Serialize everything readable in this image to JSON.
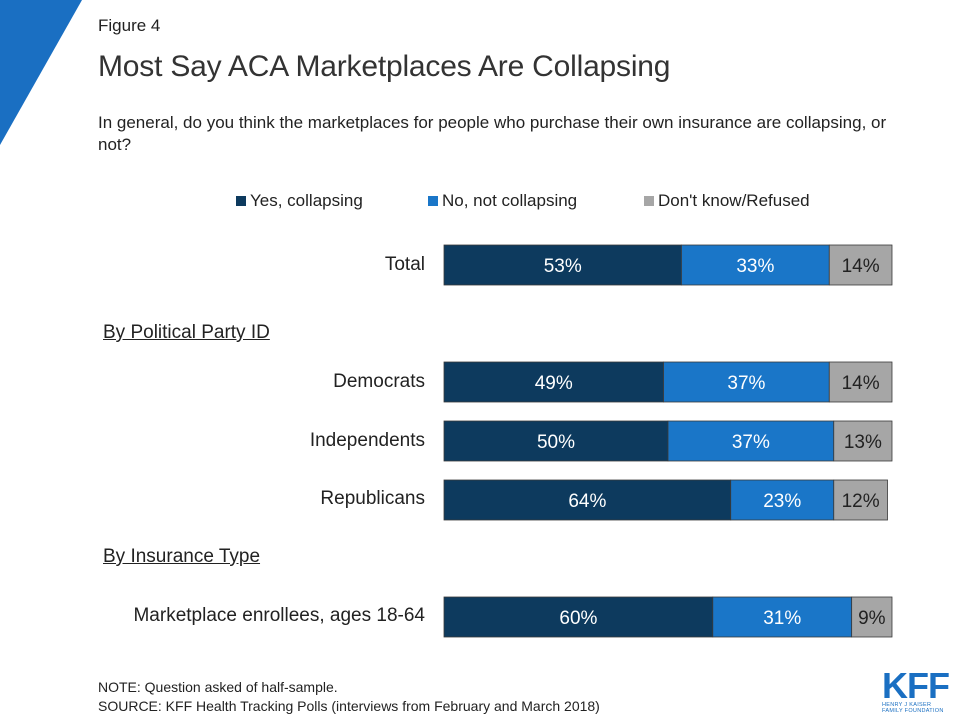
{
  "header": {
    "figure_label": "Figure 4",
    "title": "Most Say ACA Marketplaces Are Collapsing",
    "subtitle": "In general, do you think the marketplaces for people who purchase their own insurance are collapsing, or not?"
  },
  "legend": [
    {
      "label": "Yes, collapsing",
      "color": "#0d3a5e"
    },
    {
      "label": "No, not collapsing",
      "color": "#1a76c8"
    },
    {
      "label": "Don't know/Refused",
      "color": "#a6a6a6"
    }
  ],
  "sections": {
    "party": "By Political Party ID",
    "insurance": "By Insurance Type"
  },
  "chart_data": {
    "type": "bar",
    "orientation": "horizontal",
    "stacked": true,
    "categories": [
      "Total",
      "Democrats",
      "Independents",
      "Republicans",
      "Marketplace enrollees, ages 18-64"
    ],
    "series": [
      {
        "name": "Yes, collapsing",
        "values": [
          53,
          49,
          50,
          64,
          60
        ],
        "color": "#0d3a5e"
      },
      {
        "name": "No, not collapsing",
        "values": [
          33,
          37,
          37,
          23,
          31
        ],
        "color": "#1a76c8"
      },
      {
        "name": "Don't know/Refused",
        "values": [
          14,
          14,
          13,
          12,
          9
        ],
        "color": "#a6a6a6"
      }
    ],
    "data_labels": [
      [
        "53%",
        "33%",
        "14%"
      ],
      [
        "49%",
        "37%",
        "14%"
      ],
      [
        "50%",
        "37%",
        "13%"
      ],
      [
        "64%",
        "23%",
        "12%"
      ],
      [
        "60%",
        "31%",
        "9%"
      ]
    ],
    "unit": "%",
    "legend_position": "top"
  },
  "footer": {
    "note": "NOTE: Question asked of half-sample.",
    "source": "SOURCE: KFF Health Tracking Polls (interviews from February and March 2018)"
  },
  "logo": {
    "text": "KFF",
    "org_line1": "HENRY J KAISER",
    "org_line2": "FAMILY FOUNDATION"
  }
}
